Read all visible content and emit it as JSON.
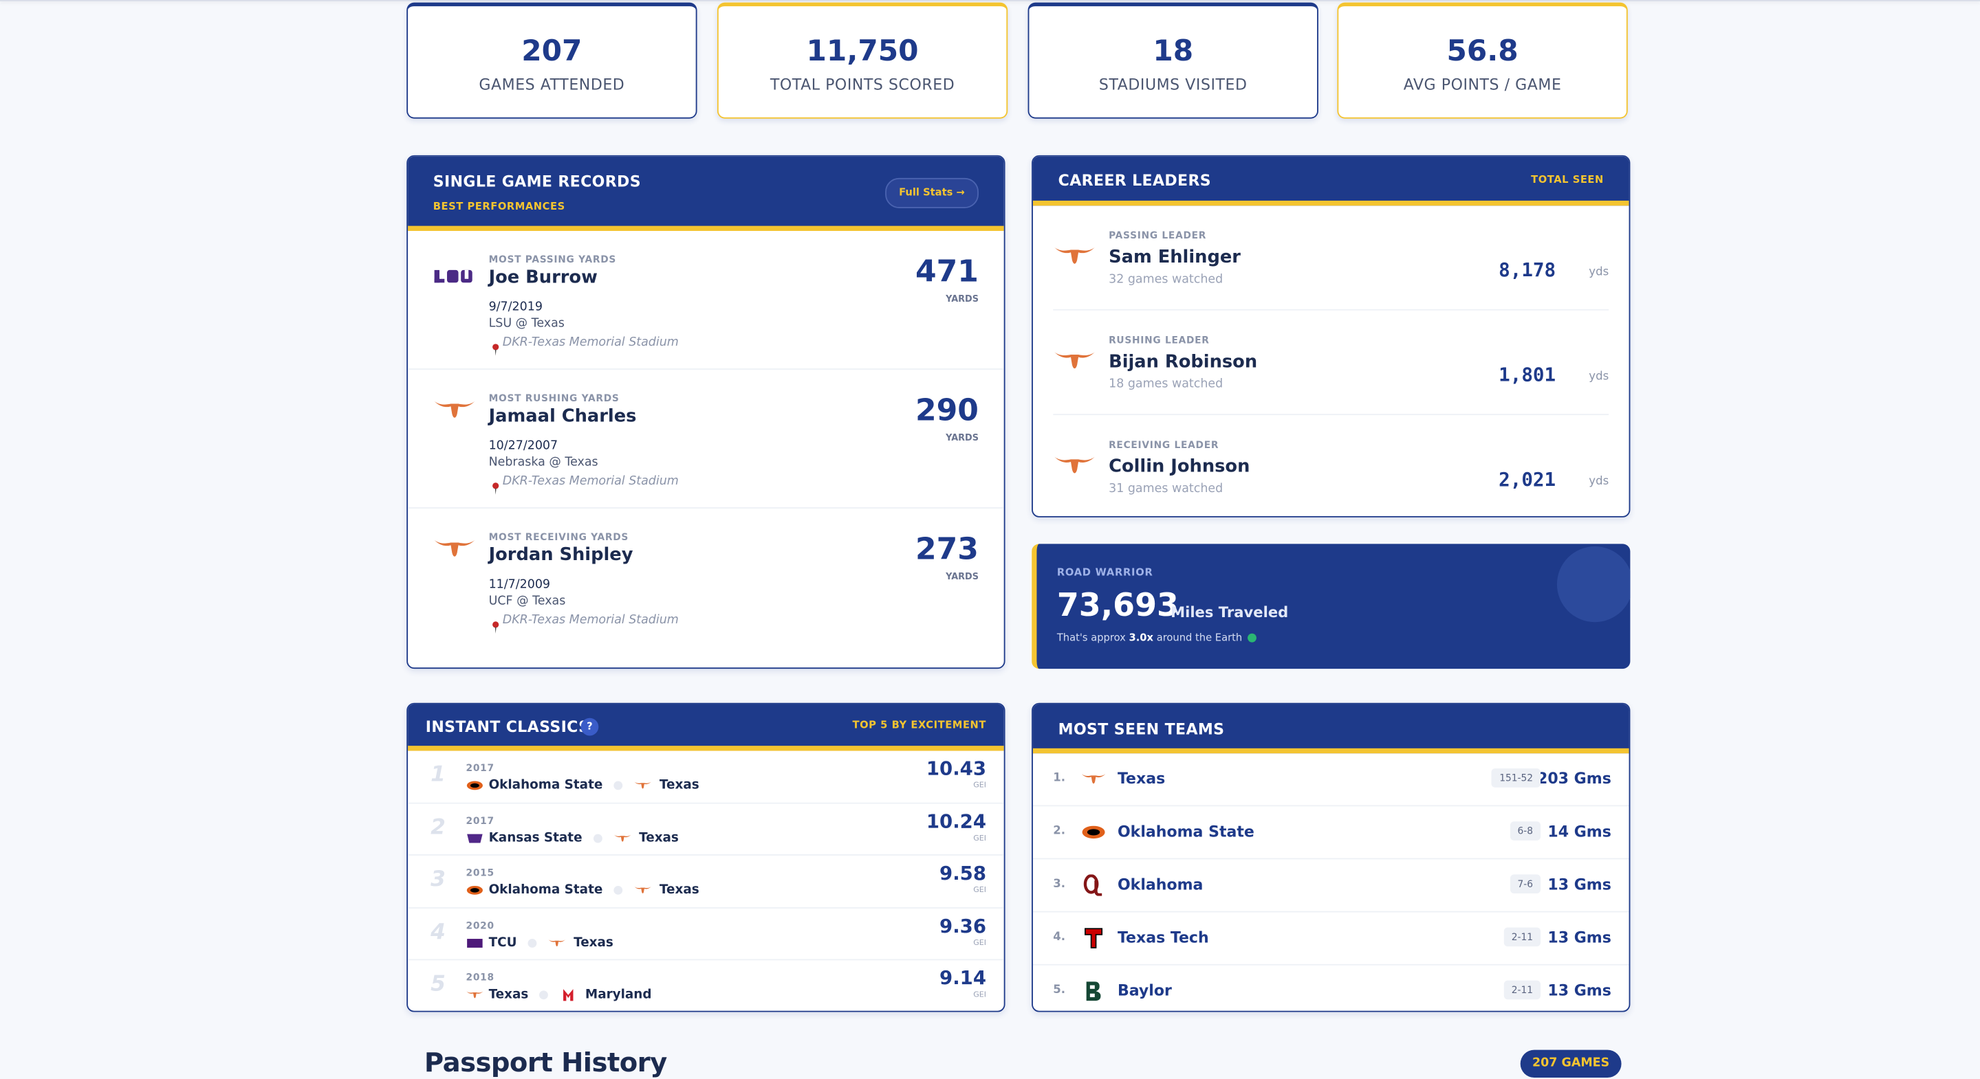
{
  "stats": [
    {
      "value": "207",
      "label": "GAMES ATTENDED"
    },
    {
      "value": "11,750",
      "label": "TOTAL POINTS SCORED"
    },
    {
      "value": "18",
      "label": "STADIUMS VISITED"
    },
    {
      "value": "56.8",
      "label": "AVG POINTS / GAME"
    }
  ],
  "records": {
    "title": "SINGLE GAME RECORDS",
    "subtitle": "BEST PERFORMANCES",
    "button": "Full Stats →",
    "items": [
      {
        "category": "MOST PASSING YARDS",
        "player": "Joe Burrow",
        "date": "9/7/2019",
        "matchup": "LSU @ Texas",
        "stadium": "DKR-Texas Memorial Stadium",
        "value": "471",
        "unit": "YARDS"
      },
      {
        "category": "MOST RUSHING YARDS",
        "player": "Jamaal Charles",
        "date": "10/27/2007",
        "matchup": "Nebraska @ Texas",
        "stadium": "DKR-Texas Memorial Stadium",
        "value": "290",
        "unit": "YARDS"
      },
      {
        "category": "MOST RECEIVING YARDS",
        "player": "Jordan Shipley",
        "date": "11/7/2009",
        "matchup": "UCF @ Texas",
        "stadium": "DKR-Texas Memorial Stadium",
        "value": "273",
        "unit": "YARDS"
      }
    ]
  },
  "career": {
    "title": "CAREER LEADERS",
    "badge": "TOTAL SEEN",
    "items": [
      {
        "category": "PASSING LEADER",
        "player": "Sam Ehlinger",
        "games": "32 games watched",
        "value": "8,178",
        "unit": "yds"
      },
      {
        "category": "RUSHING LEADER",
        "player": "Bijan Robinson",
        "games": "18 games watched",
        "value": "1,801",
        "unit": "yds"
      },
      {
        "category": "RECEIVING LEADER",
        "player": "Collin Johnson",
        "games": "31 games watched",
        "value": "2,021",
        "unit": "yds"
      }
    ]
  },
  "road": {
    "label": "ROAD WARRIOR",
    "miles": "73,693",
    "miles_label": "Miles Traveled",
    "note_pre": "That's approx",
    "note_value": "3.0x",
    "note_post": "around the Earth"
  },
  "classics": {
    "title": "INSTANT CLASSICS",
    "help": "?",
    "badge": "TOP 5 BY EXCITEMENT",
    "items": [
      {
        "rank": "1",
        "year": "2017",
        "away": "Oklahoma State",
        "home": "Texas",
        "score": "10.43",
        "unit": "GEI"
      },
      {
        "rank": "2",
        "year": "2017",
        "away": "Kansas State",
        "home": "Texas",
        "score": "10.24",
        "unit": "GEI"
      },
      {
        "rank": "3",
        "year": "2015",
        "away": "Oklahoma State",
        "home": "Texas",
        "score": "9.58",
        "unit": "GEI"
      },
      {
        "rank": "4",
        "year": "2020",
        "away": "TCU",
        "home": "Texas",
        "score": "9.36",
        "unit": "GEI"
      },
      {
        "rank": "5",
        "year": "2018",
        "away": "Texas",
        "home": "Maryland",
        "score": "9.14",
        "unit": "GEI"
      }
    ]
  },
  "teams": {
    "title": "MOST SEEN TEAMS",
    "items": [
      {
        "rank": "1.",
        "name": "Texas",
        "record": "151-52",
        "games": "203 Gms"
      },
      {
        "rank": "2.",
        "name": "Oklahoma State",
        "record": "6-8",
        "games": "14 Gms"
      },
      {
        "rank": "3.",
        "name": "Oklahoma",
        "record": "7-6",
        "games": "13 Gms"
      },
      {
        "rank": "4.",
        "name": "Texas Tech",
        "record": "2-11",
        "games": "13 Gms"
      },
      {
        "rank": "5.",
        "name": "Baylor",
        "record": "2-11",
        "games": "13 Gms"
      }
    ]
  },
  "passport": {
    "title": "Passport History",
    "badge": "207 GAMES"
  }
}
